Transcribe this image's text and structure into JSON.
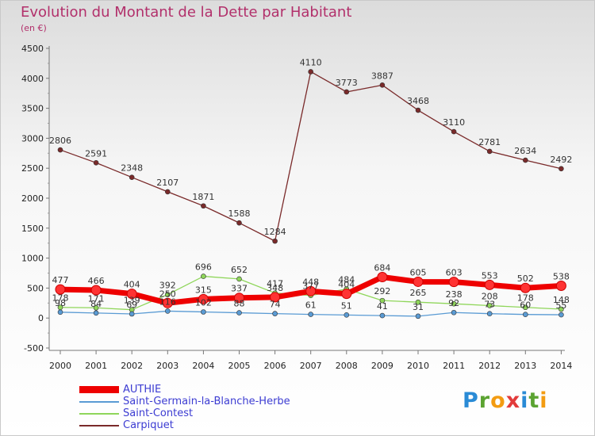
{
  "title": "Evolution du Montant de la Dette par Habitant",
  "subtitle": "(en €)",
  "logo": {
    "text": "Proxiti"
  },
  "chart_data": {
    "type": "line",
    "x": [
      "2000",
      "2001",
      "2002",
      "2003",
      "2004",
      "2005",
      "2006",
      "2007",
      "2008",
      "2009",
      "2010",
      "2011",
      "2012",
      "2013",
      "2014"
    ],
    "ylim": [
      -500,
      4500
    ],
    "yticks": [
      -500,
      0,
      500,
      1000,
      1500,
      2000,
      2500,
      3000,
      3500,
      4000,
      4500
    ],
    "grid": false,
    "legend_position": "bottom-left",
    "series": [
      {
        "name": "Carpiquet",
        "color": "#7a2a2a",
        "values": [
          2806,
          2591,
          2348,
          2107,
          1871,
          1588,
          1284,
          4110,
          3773,
          3887,
          3468,
          3110,
          2781,
          2634,
          2492
        ],
        "labels": [
          "2806",
          "2591",
          "2348",
          "2107",
          "1871",
          "1588",
          "1284",
          "4110",
          "3773",
          "3887",
          "3468",
          "3110",
          "2781",
          "2634",
          "2492"
        ]
      },
      {
        "name": "Saint-Contest",
        "color": "#8fd65a",
        "values": [
          178,
          171,
          139,
          392,
          696,
          652,
          417,
          377,
          484,
          292,
          265,
          238,
          208,
          178,
          148
        ],
        "labels": [
          "178",
          "171",
          "139",
          "392",
          "696",
          "652",
          "417",
          "377",
          "484",
          "292",
          "265",
          "238",
          "208",
          "178",
          "148"
        ]
      },
      {
        "name": "Saint-Germain-la-Blanche-Herbe",
        "color": "#5a9bd4",
        "values": [
          98,
          84,
          69,
          116,
          102,
          88,
          74,
          61,
          51,
          41,
          31,
          92,
          73,
          60,
          55
        ],
        "labels": [
          "98",
          "84",
          "69",
          "116",
          "102",
          "88",
          "74",
          "61",
          "51",
          "41",
          "31",
          "92",
          "73",
          "60",
          "55"
        ]
      },
      {
        "name": "AUTHIE",
        "color": "#ee0000",
        "values": [
          477,
          466,
          404,
          250,
          315,
          337,
          348,
          448,
          404,
          684,
          605,
          603,
          553,
          502,
          538
        ],
        "labels": [
          "477",
          "466",
          "404",
          "250",
          "315",
          "337",
          "348",
          "448",
          "404",
          "684",
          "605",
          "603",
          "553",
          "502",
          "538"
        ]
      }
    ]
  },
  "legend": [
    {
      "name": "AUTHIE",
      "color": "#ee0000",
      "thickness": 9
    },
    {
      "name": "Saint-Germain-la-Blanche-Herbe",
      "color": "#5a9bd4",
      "thickness": 2
    },
    {
      "name": "Saint-Contest",
      "color": "#8fd65a",
      "thickness": 2
    },
    {
      "name": "Carpiquet",
      "color": "#7a2a2a",
      "thickness": 2
    }
  ]
}
